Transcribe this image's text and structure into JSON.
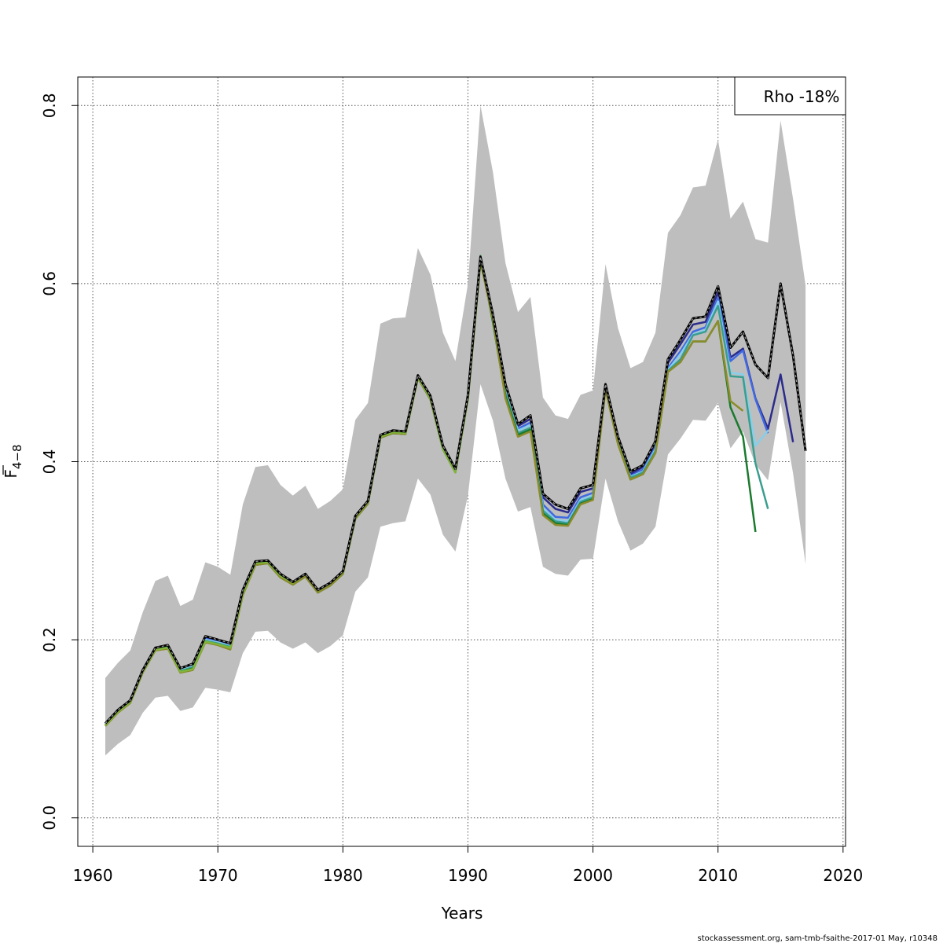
{
  "chart_data": {
    "type": "line",
    "xlabel": "Years",
    "ylabel_main": "F",
    "ylabel_sub": "4−8",
    "xlim": [
      1958.8,
      2020.2
    ],
    "ylim": [
      -0.032,
      0.832
    ],
    "x_ticks": [
      1960,
      1970,
      1980,
      1990,
      2000,
      2010,
      2020
    ],
    "x_tick_labels": [
      "1960",
      "1970",
      "1980",
      "1990",
      "2000",
      "2010",
      "2020"
    ],
    "y_ticks": [
      0.0,
      0.2,
      0.4,
      0.6,
      0.8
    ],
    "y_tick_labels": [
      "0.0",
      "0.2",
      "0.4",
      "0.6",
      "0.8"
    ],
    "grid": true,
    "legend": {
      "text": "Rho -18%",
      "placement": "top-right"
    },
    "footer": "stockassessment.org, sam-tmb-fsaithe-2017-01  May, r10348",
    "colors": {
      "band": "#bebebe",
      "base": "#000000",
      "peel1": "#2b2b8c",
      "peel2": "#4169e1",
      "peel3": "#87ceeb",
      "peel4": "#3a9e8f",
      "peel5": "#1a7a2e",
      "peel6": "#8c8c2a",
      "peel7": "#7fb53c"
    },
    "years": [
      1961,
      1962,
      1963,
      1964,
      1965,
      1966,
      1967,
      1968,
      1969,
      1970,
      1971,
      1972,
      1973,
      1974,
      1975,
      1976,
      1977,
      1978,
      1979,
      1980,
      1981,
      1982,
      1983,
      1984,
      1985,
      1986,
      1987,
      1988,
      1989,
      1990,
      1991,
      1992,
      1993,
      1994,
      1995,
      1996,
      1997,
      1998,
      1999,
      2000,
      2001,
      2002,
      2003,
      2004,
      2005,
      2006,
      2007,
      2008,
      2009,
      2010,
      2011,
      2012,
      2013,
      2014,
      2015,
      2016,
      2017
    ],
    "band_upper": [
      0.157,
      0.174,
      0.188,
      0.231,
      0.266,
      0.272,
      0.238,
      0.245,
      0.287,
      0.282,
      0.273,
      0.352,
      0.394,
      0.396,
      0.374,
      0.362,
      0.373,
      0.347,
      0.356,
      0.369,
      0.447,
      0.466,
      0.555,
      0.561,
      0.562,
      0.64,
      0.61,
      0.545,
      0.513,
      0.6,
      0.8,
      0.725,
      0.623,
      0.568,
      0.585,
      0.472,
      0.452,
      0.448,
      0.475,
      0.48,
      0.622,
      0.55,
      0.505,
      0.512,
      0.545,
      0.657,
      0.677,
      0.708,
      0.71,
      0.762,
      0.673,
      0.692,
      0.65,
      0.646,
      0.783,
      0.695,
      0.598
    ],
    "band_lower": [
      0.07,
      0.083,
      0.093,
      0.118,
      0.135,
      0.137,
      0.12,
      0.124,
      0.146,
      0.144,
      0.141,
      0.185,
      0.209,
      0.21,
      0.197,
      0.19,
      0.197,
      0.185,
      0.193,
      0.205,
      0.254,
      0.27,
      0.327,
      0.331,
      0.333,
      0.381,
      0.363,
      0.318,
      0.299,
      0.362,
      0.487,
      0.446,
      0.381,
      0.344,
      0.349,
      0.282,
      0.274,
      0.272,
      0.29,
      0.291,
      0.381,
      0.333,
      0.3,
      0.308,
      0.327,
      0.408,
      0.426,
      0.447,
      0.446,
      0.466,
      0.415,
      0.434,
      0.397,
      0.379,
      0.467,
      0.387,
      0.285
    ],
    "series": [
      {
        "key": "base",
        "dashed": true,
        "start": 1961,
        "values": [
          0.106,
          0.121,
          0.132,
          0.166,
          0.191,
          0.194,
          0.168,
          0.173,
          0.204,
          0.2,
          0.196,
          0.256,
          0.288,
          0.289,
          0.274,
          0.265,
          0.274,
          0.256,
          0.264,
          0.277,
          0.339,
          0.356,
          0.43,
          0.435,
          0.434,
          0.497,
          0.474,
          0.418,
          0.392,
          0.475,
          0.63,
          0.565,
          0.487,
          0.442,
          0.452,
          0.364,
          0.352,
          0.347,
          0.37,
          0.374,
          0.487,
          0.428,
          0.389,
          0.396,
          0.423,
          0.515,
          0.537,
          0.561,
          0.563,
          0.597,
          0.528,
          0.546,
          0.509,
          0.494,
          0.6,
          0.519,
          0.412
        ]
      },
      {
        "key": "peel1",
        "dashed": false,
        "start": 1961,
        "values": [
          0.106,
          0.121,
          0.132,
          0.166,
          0.191,
          0.194,
          0.168,
          0.172,
          0.203,
          0.199,
          0.195,
          0.255,
          0.287,
          0.288,
          0.273,
          0.264,
          0.273,
          0.255,
          0.263,
          0.276,
          0.338,
          0.355,
          0.429,
          0.434,
          0.433,
          0.496,
          0.473,
          0.417,
          0.391,
          0.474,
          0.629,
          0.563,
          0.485,
          0.44,
          0.448,
          0.36,
          0.347,
          0.343,
          0.366,
          0.37,
          0.486,
          0.426,
          0.386,
          0.394,
          0.42,
          0.511,
          0.532,
          0.554,
          0.557,
          0.59,
          0.517,
          0.527,
          0.471,
          0.437,
          0.498,
          0.422
        ]
      },
      {
        "key": "peel2",
        "dashed": false,
        "start": 1961,
        "values": [
          0.105,
          0.12,
          0.131,
          0.165,
          0.19,
          0.193,
          0.167,
          0.171,
          0.201,
          0.198,
          0.194,
          0.254,
          0.286,
          0.287,
          0.272,
          0.263,
          0.272,
          0.254,
          0.262,
          0.275,
          0.337,
          0.354,
          0.428,
          0.433,
          0.432,
          0.495,
          0.472,
          0.416,
          0.39,
          0.473,
          0.628,
          0.562,
          0.482,
          0.437,
          0.444,
          0.352,
          0.338,
          0.337,
          0.36,
          0.365,
          0.485,
          0.424,
          0.384,
          0.391,
          0.416,
          0.505,
          0.524,
          0.546,
          0.551,
          0.584,
          0.513,
          0.525,
          0.47,
          0.432
        ]
      },
      {
        "key": "peel3",
        "dashed": false,
        "start": 1961,
        "values": [
          0.105,
          0.12,
          0.131,
          0.165,
          0.19,
          0.193,
          0.166,
          0.17,
          0.2,
          0.197,
          0.193,
          0.253,
          0.286,
          0.287,
          0.272,
          0.263,
          0.272,
          0.254,
          0.262,
          0.275,
          0.337,
          0.354,
          0.428,
          0.433,
          0.432,
          0.495,
          0.472,
          0.416,
          0.39,
          0.473,
          0.628,
          0.561,
          0.48,
          0.435,
          0.441,
          0.348,
          0.335,
          0.333,
          0.357,
          0.362,
          0.484,
          0.423,
          0.383,
          0.389,
          0.414,
          0.503,
          0.521,
          0.543,
          0.548,
          0.58,
          0.5,
          0.498,
          0.418,
          0.435
        ]
      },
      {
        "key": "peel4",
        "dashed": false,
        "start": 1961,
        "values": [
          0.104,
          0.119,
          0.13,
          0.164,
          0.189,
          0.192,
          0.165,
          0.169,
          0.199,
          0.196,
          0.192,
          0.252,
          0.285,
          0.286,
          0.271,
          0.262,
          0.271,
          0.253,
          0.261,
          0.274,
          0.336,
          0.353,
          0.427,
          0.432,
          0.431,
          0.494,
          0.471,
          0.415,
          0.389,
          0.472,
          0.627,
          0.56,
          0.477,
          0.432,
          0.438,
          0.345,
          0.333,
          0.331,
          0.355,
          0.36,
          0.483,
          0.422,
          0.382,
          0.388,
          0.412,
          0.502,
          0.515,
          0.542,
          0.546,
          0.575,
          0.496,
          0.495,
          0.398,
          0.347
        ]
      },
      {
        "key": "peel5",
        "dashed": false,
        "start": 1961,
        "values": [
          0.104,
          0.119,
          0.13,
          0.164,
          0.189,
          0.191,
          0.164,
          0.168,
          0.198,
          0.195,
          0.191,
          0.251,
          0.284,
          0.286,
          0.27,
          0.262,
          0.271,
          0.253,
          0.261,
          0.274,
          0.336,
          0.353,
          0.427,
          0.432,
          0.431,
          0.494,
          0.47,
          0.414,
          0.388,
          0.471,
          0.631,
          0.556,
          0.474,
          0.43,
          0.436,
          0.342,
          0.331,
          0.329,
          0.353,
          0.358,
          0.482,
          0.42,
          0.38,
          0.386,
          0.41,
          0.501,
          0.512,
          0.535,
          0.535,
          0.558,
          0.461,
          0.428,
          0.321
        ]
      },
      {
        "key": "peel6",
        "dashed": false,
        "start": 1961,
        "values": [
          0.103,
          0.118,
          0.129,
          0.163,
          0.188,
          0.19,
          0.163,
          0.166,
          0.197,
          0.194,
          0.189,
          0.25,
          0.284,
          0.286,
          0.27,
          0.262,
          0.271,
          0.253,
          0.261,
          0.274,
          0.336,
          0.353,
          0.427,
          0.432,
          0.431,
          0.494,
          0.47,
          0.414,
          0.388,
          0.471,
          0.625,
          0.559,
          0.471,
          0.428,
          0.434,
          0.34,
          0.329,
          0.328,
          0.352,
          0.357,
          0.481,
          0.42,
          0.38,
          0.386,
          0.41,
          0.501,
          0.512,
          0.535,
          0.535,
          0.558,
          0.468,
          0.457
        ]
      },
      {
        "key": "peel7",
        "dashed": false,
        "start": 1961,
        "values": [
          0.104,
          0.119,
          0.13,
          0.164,
          0.189,
          0.191,
          0.164,
          0.167,
          0.198,
          0.195,
          0.191,
          0.252,
          0.286,
          0.287,
          0.272,
          0.264,
          0.274,
          0.256,
          0.264,
          0.276,
          0.338,
          0.355,
          0.428,
          0.433,
          0.432,
          0.495,
          0.471,
          0.414,
          0.388,
          0.471,
          0.624
        ]
      }
    ]
  }
}
